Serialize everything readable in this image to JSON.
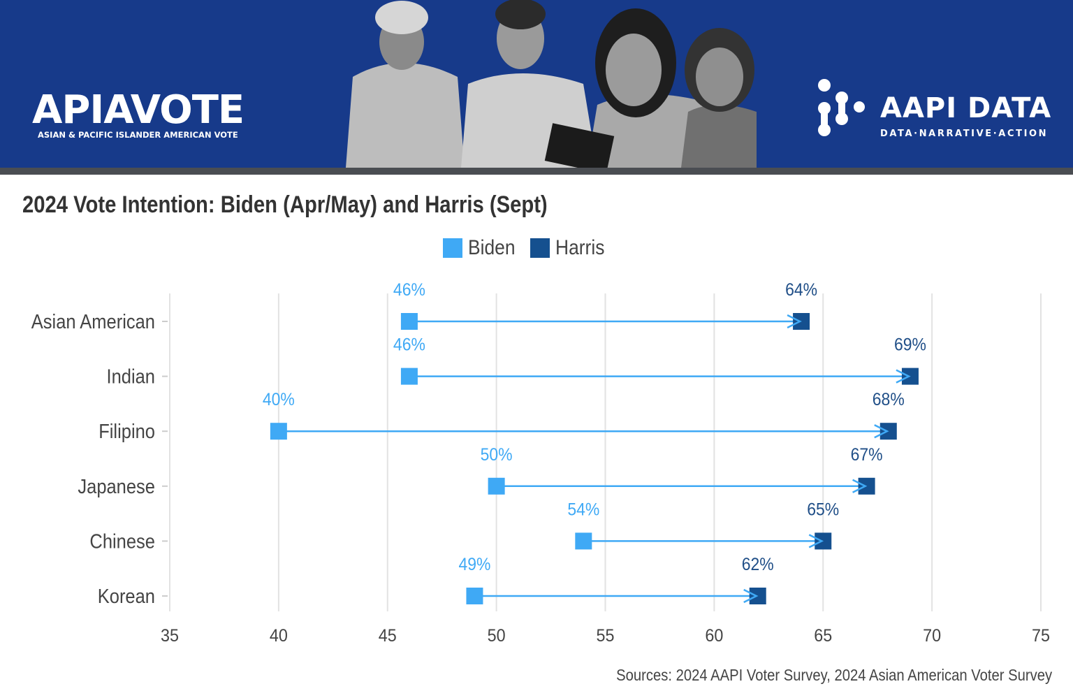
{
  "header": {
    "left_logo": "APIAVOTE",
    "left_logo_sub": "ASIAN & PACIFIC ISLANDER AMERICAN VOTE",
    "right_logo": "AAPI DATA",
    "right_logo_sub": "DATA·NARRATIVE·ACTION",
    "banner_color": "#173a8a"
  },
  "chart_data": {
    "type": "dumbbell",
    "title": "2024 Vote Intention: Biden (Apr/May) and Harris (Sept)",
    "categories": [
      "Asian American",
      "Indian",
      "Filipino",
      "Japanese",
      "Chinese",
      "Korean"
    ],
    "series": [
      {
        "name": "Biden",
        "color": "#3fa9f5",
        "values": [
          46,
          46,
          40,
          50,
          54,
          49
        ],
        "labels": [
          "46%",
          "46%",
          "40%",
          "50%",
          "54%",
          "49%"
        ]
      },
      {
        "name": "Harris",
        "color": "#15508f",
        "values": [
          64,
          69,
          68,
          67,
          65,
          62
        ],
        "labels": [
          "64%",
          "69%",
          "68%",
          "67%",
          "65%",
          "62%"
        ]
      }
    ],
    "xlim": [
      35,
      75
    ],
    "xticks": [
      "35",
      "40",
      "45",
      "50",
      "55",
      "60",
      "65",
      "70",
      "75"
    ],
    "grid": true,
    "legend_position": "top-center",
    "source": "Sources: 2024 AAPI Voter Survey, 2024 Asian American Voter Survey"
  }
}
